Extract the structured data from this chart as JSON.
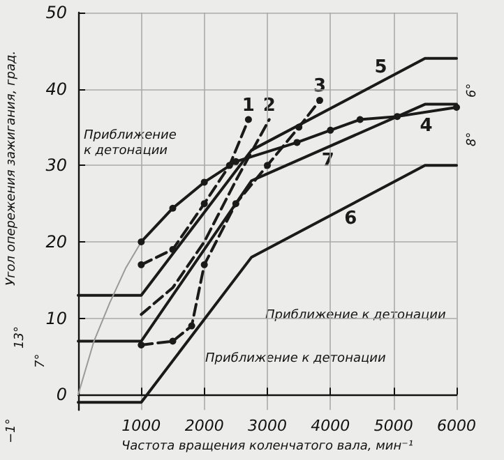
{
  "chart_data": {
    "type": "line",
    "xlabel": "Частота вращения коленчатого вала, мин⁻¹",
    "ylabel": "Угол опережения зажигания, град.",
    "xlim": [
      0,
      6000
    ],
    "xticks": [
      1000,
      2000,
      3000,
      4000,
      5000,
      6000
    ],
    "ylim": [
      -2,
      50
    ],
    "yticks": [
      0,
      10,
      20,
      30,
      40,
      50
    ],
    "grid": true,
    "legend": false,
    "annotations": [
      "Приближение к детонации",
      "Приближение к детонации",
      "Приближение к детонации",
      "13°",
      "7°",
      "−1°",
      "6°",
      "8°"
    ],
    "series": [
      {
        "name": "1",
        "color": "#1a1a1a",
        "line_style": "dashed",
        "marker": "circle",
        "x": [
          1000,
          1500,
          2000,
          2400,
          2700
        ],
        "values": [
          17,
          19,
          25,
          30,
          36
        ]
      },
      {
        "name": "2",
        "color": "#1a1a1a",
        "line_style": "dashed",
        "marker": "none",
        "x": [
          1000,
          1500,
          2000,
          2500,
          3030
        ],
        "values": [
          10.5,
          14,
          20,
          28,
          36
        ]
      },
      {
        "name": "3",
        "color": "#1a1a1a",
        "line_style": "dashed",
        "marker": "circle",
        "x": [
          1000,
          1500,
          1800,
          2000,
          2500,
          3000,
          3500,
          3830
        ],
        "values": [
          6.5,
          7,
          9,
          17,
          25,
          30,
          35,
          38.5
        ]
      },
      {
        "name": "4",
        "color": "#1a1a1a",
        "line_style": "solid",
        "marker": "circle",
        "x": [
          1000,
          1500,
          2000,
          2500,
          3470,
          4000,
          4470,
          5060,
          6000
        ],
        "values": [
          20,
          24.4,
          27.8,
          30.5,
          33,
          34.6,
          36,
          36.4,
          37.6
        ]
      },
      {
        "name": "5",
        "color": "#1a1a1a",
        "line_style": "solid",
        "marker": "none",
        "x": [
          0,
          1000,
          2750,
          5500,
          6000
        ],
        "values": [
          13,
          13,
          32,
          44,
          44
        ]
      },
      {
        "name": "6",
        "color": "#1a1a1a",
        "line_style": "solid",
        "marker": "none",
        "x": [
          0,
          1000,
          2750,
          5500,
          6000
        ],
        "values": [
          -1,
          -1,
          18,
          30,
          30
        ]
      },
      {
        "name": "7",
        "color": "#1a1a1a",
        "line_style": "solid",
        "marker": "none",
        "x": [
          0,
          1000,
          2750,
          5500,
          6000
        ],
        "values": [
          7,
          7,
          28,
          38,
          38
        ]
      },
      {
        "color": "#9a9a9a",
        "line_style": "solid",
        "marker": "none",
        "x": [
          0,
          250,
          500,
          750,
          1000
        ],
        "values": [
          0,
          7,
          12,
          16.5,
          20
        ]
      }
    ]
  }
}
